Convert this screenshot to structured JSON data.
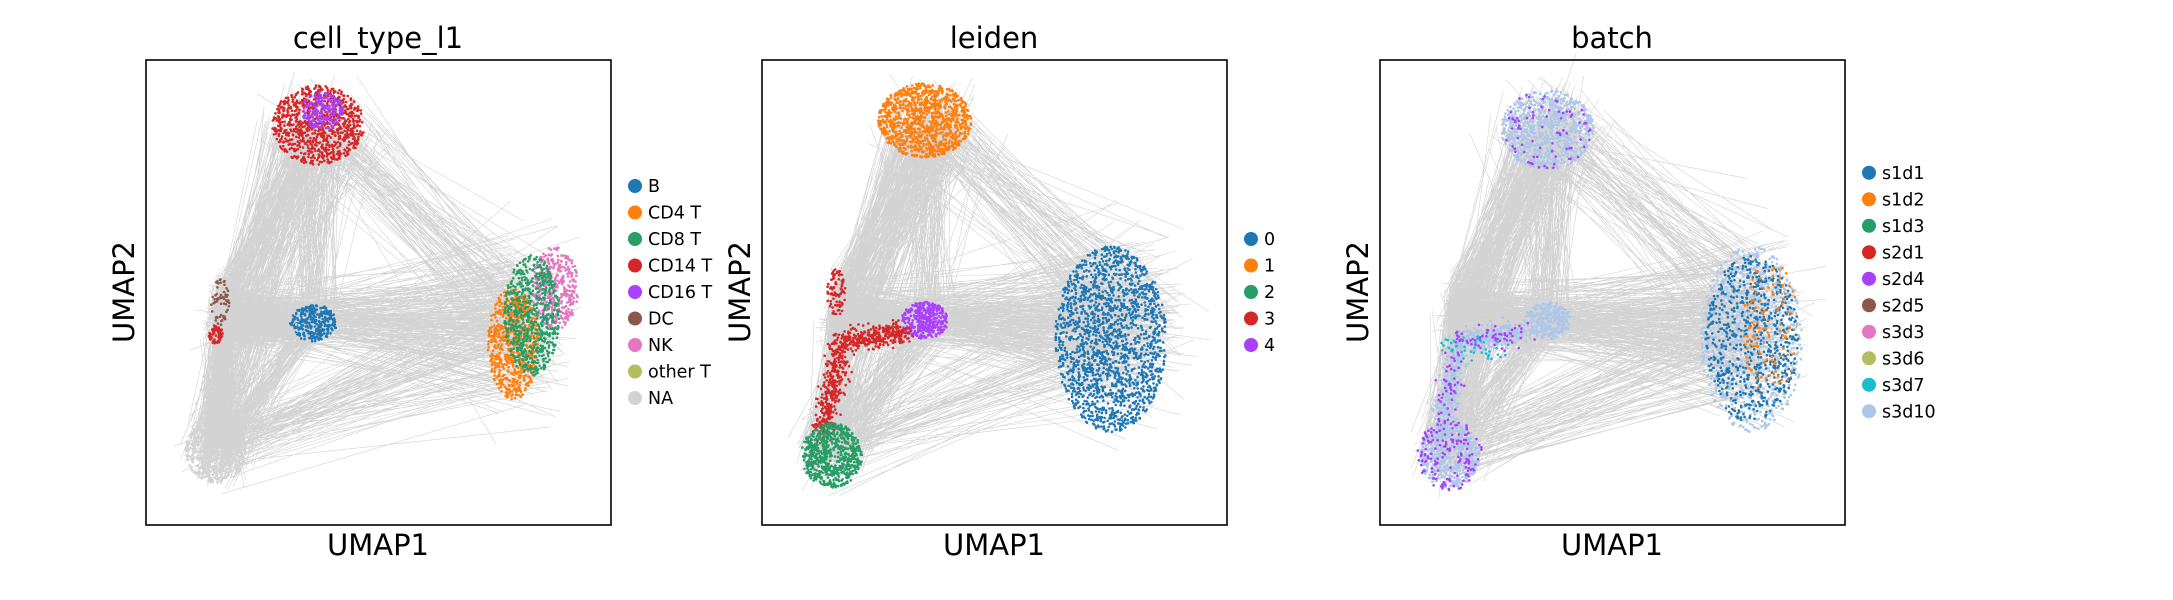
{
  "chart_data": [
    {
      "type": "scatter",
      "title": "cell_type_l1",
      "xlabel": "UMAP1",
      "ylabel": "UMAP2",
      "edges_color": "#808080",
      "legend": {
        "placement": "right",
        "items": [
          {
            "label": "B",
            "color": "#1f77b4"
          },
          {
            "label": "CD4 T",
            "color": "#ff7f0e"
          },
          {
            "label": "CD8 T",
            "color": "#279e68"
          },
          {
            "label": "CD14 T",
            "color": "#d62728"
          },
          {
            "label": "CD16 T",
            "color": "#aa40fc"
          },
          {
            "label": "DC",
            "color": "#8c564b"
          },
          {
            "label": "NK",
            "color": "#e377c2"
          },
          {
            "label": "other T",
            "color": "#b5bd61"
          },
          {
            "label": "NA",
            "color": "#d3d3d3"
          }
        ]
      }
    },
    {
      "type": "scatter",
      "title": "leiden",
      "xlabel": "UMAP1",
      "ylabel": "UMAP2",
      "edges_color": "#808080",
      "legend": {
        "placement": "right",
        "items": [
          {
            "label": "0",
            "color": "#1f77b4"
          },
          {
            "label": "1",
            "color": "#ff7f0e"
          },
          {
            "label": "2",
            "color": "#279e68"
          },
          {
            "label": "3",
            "color": "#d62728"
          },
          {
            "label": "4",
            "color": "#aa40fc"
          }
        ]
      }
    },
    {
      "type": "scatter",
      "title": "batch",
      "xlabel": "UMAP1",
      "ylabel": "UMAP2",
      "edges_color": "#808080",
      "legend": {
        "placement": "right",
        "items": [
          {
            "label": "s1d1",
            "color": "#1f77b4"
          },
          {
            "label": "s1d2",
            "color": "#ff7f0e"
          },
          {
            "label": "s1d3",
            "color": "#279e68"
          },
          {
            "label": "s2d1",
            "color": "#d62728"
          },
          {
            "label": "s2d4",
            "color": "#aa40fc"
          },
          {
            "label": "s2d5",
            "color": "#8c564b"
          },
          {
            "label": "s3d3",
            "color": "#e377c2"
          },
          {
            "label": "s3d6",
            "color": "#b5bd61"
          },
          {
            "label": "s3d7",
            "color": "#17becf"
          },
          {
            "label": "s3d10",
            "color": "#aec7e8"
          }
        ]
      }
    }
  ]
}
